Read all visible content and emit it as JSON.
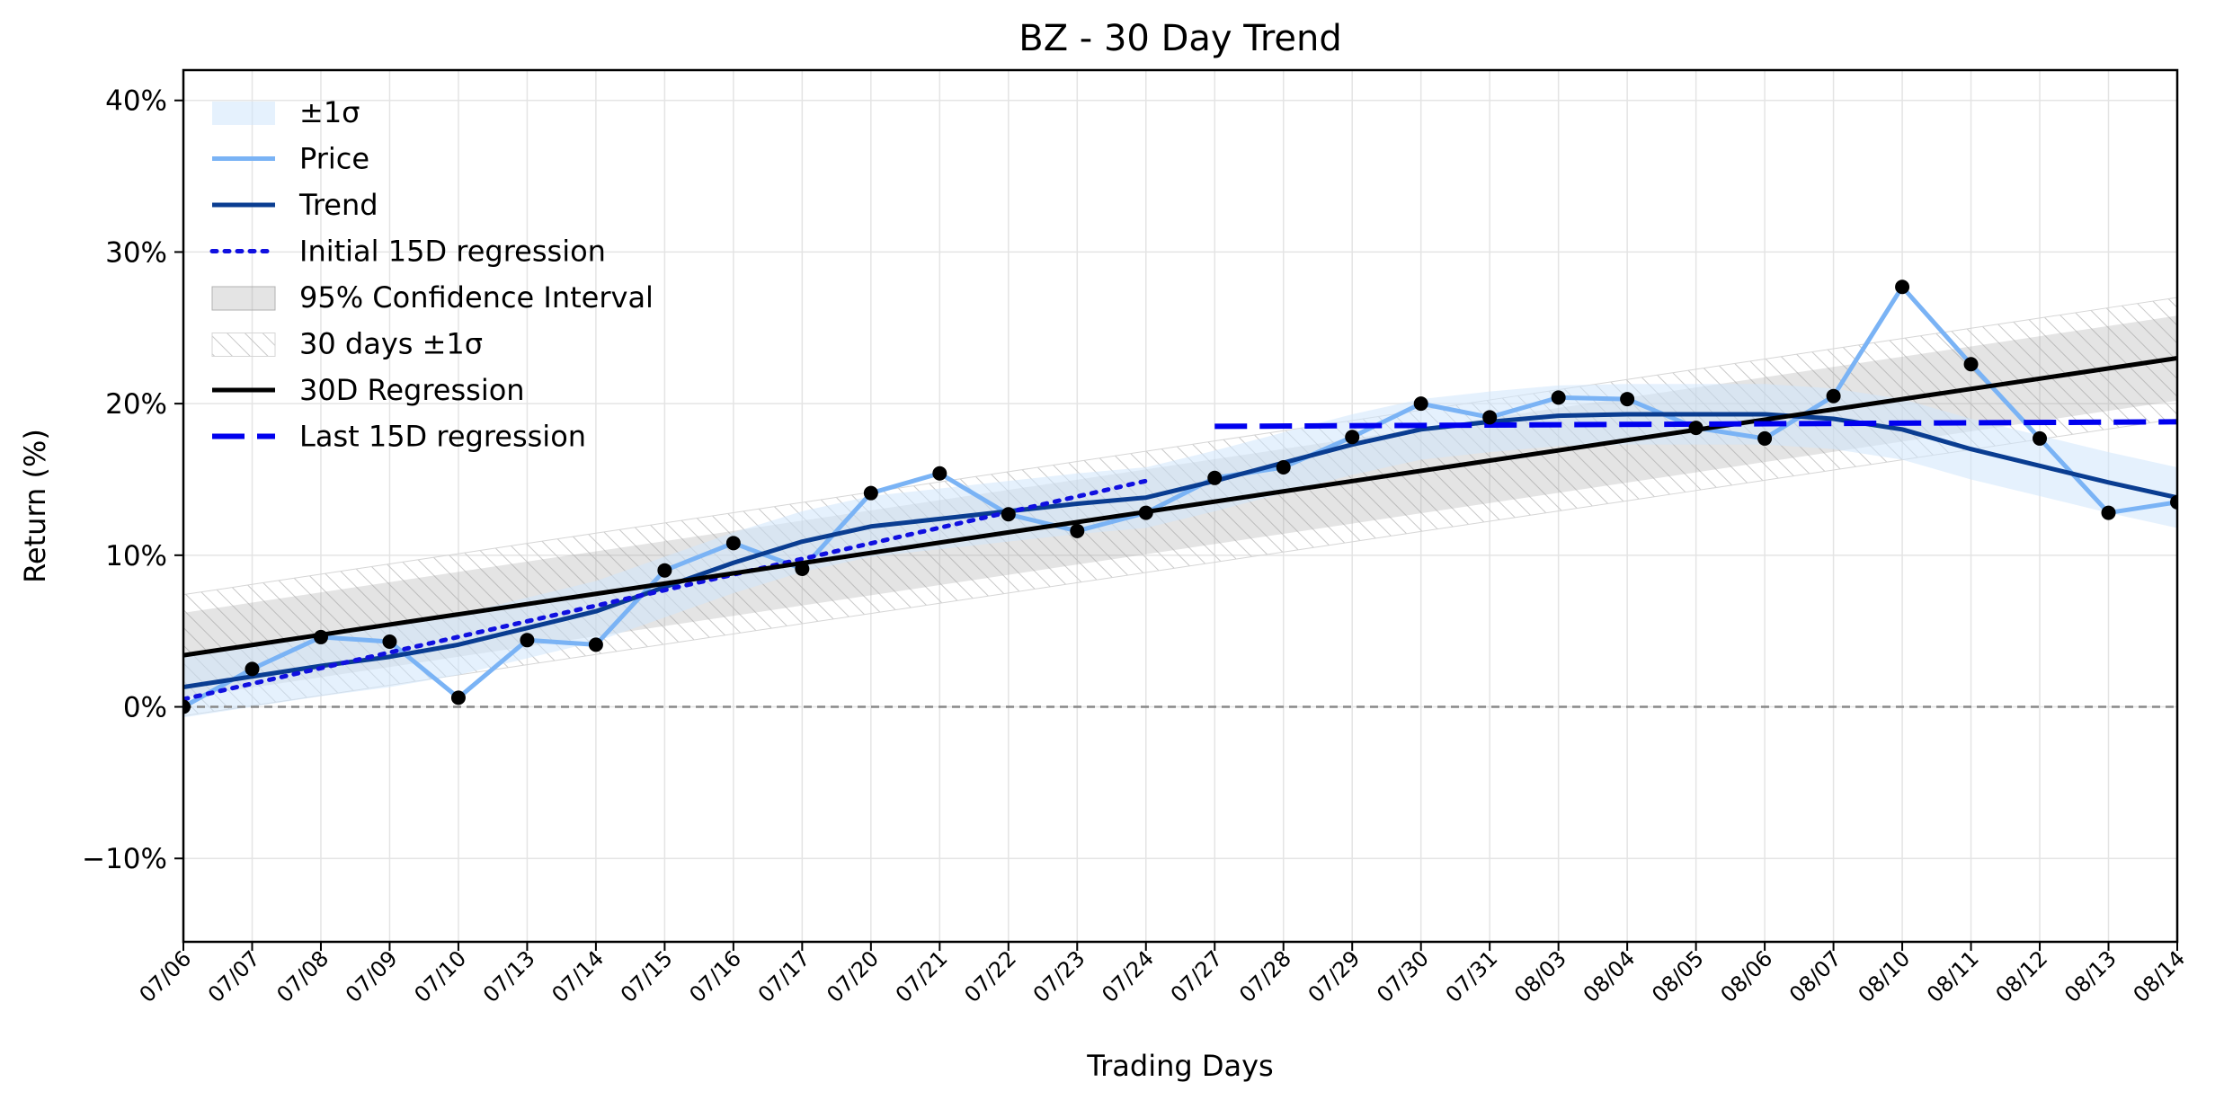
{
  "chart_data": {
    "type": "line",
    "title": "BZ - 30 Day Trend",
    "xlabel": "Trading Days",
    "ylabel": "Return (%)",
    "ylim": [
      -15.5,
      42
    ],
    "yticks": [
      -10,
      0,
      10,
      20,
      30,
      40
    ],
    "ytick_labels": [
      "−10%",
      "0%",
      "10%",
      "20%",
      "30%",
      "40%"
    ],
    "grid": true,
    "legend_position": "top-left",
    "categories": [
      "07/06",
      "07/07",
      "07/08",
      "07/09",
      "07/10",
      "07/13",
      "07/14",
      "07/15",
      "07/16",
      "07/17",
      "07/20",
      "07/21",
      "07/22",
      "07/23",
      "07/24",
      "07/27",
      "07/28",
      "07/29",
      "07/30",
      "07/31",
      "08/03",
      "08/04",
      "08/05",
      "08/06",
      "08/07",
      "08/10",
      "08/11",
      "08/12",
      "08/13",
      "08/14"
    ],
    "price": [
      0.0,
      2.5,
      4.6,
      4.3,
      0.6,
      4.4,
      4.1,
      9.0,
      10.8,
      9.1,
      14.1,
      15.4,
      12.7,
      11.6,
      12.8,
      15.1,
      15.8,
      17.8,
      20.0,
      19.1,
      20.4,
      20.3,
      18.4,
      17.7,
      20.5,
      27.7,
      22.6,
      17.7,
      12.8,
      13.5
    ],
    "trend": [
      1.3,
      2.0,
      2.7,
      3.3,
      4.1,
      5.2,
      6.3,
      7.9,
      9.5,
      10.9,
      11.9,
      12.4,
      12.9,
      13.4,
      13.8,
      14.9,
      16.1,
      17.3,
      18.3,
      18.8,
      19.2,
      19.3,
      19.3,
      19.3,
      19.0,
      18.3,
      17.0,
      15.9,
      14.8,
      13.8
    ],
    "sigma_band": 2.0,
    "initial_15d_regression": {
      "start": 0.5,
      "end": 14.9,
      "from_index": 0,
      "to_index": 14
    },
    "regression_30d": {
      "start": 3.4,
      "end": 23.0
    },
    "confidence_interval_95": 2.8,
    "band_30d_sigma": 4.0,
    "last_15d_regression": {
      "start": 18.5,
      "end": 18.8,
      "from_index": 15,
      "to_index": 29
    },
    "zero_line": 0,
    "legend": [
      "±1σ",
      "Price",
      "Trend",
      "Initial 15D regression",
      "95% Confidence Interval",
      "30 days ±1σ",
      "30D Regression",
      "Last 15D regression"
    ],
    "colors": {
      "sigma_fill": "#cfe6fb",
      "price": "#7ab3f5",
      "trend": "#0a3d91",
      "initial_regression": "#1010e0",
      "ci_fill": "#9e9e9e",
      "band30_hatch": "#c8c8c8",
      "regression30": "#000000",
      "last_regression": "#0000ee",
      "points": "#000000",
      "zero_line": "#888888",
      "grid": "#e4e4e4"
    }
  }
}
